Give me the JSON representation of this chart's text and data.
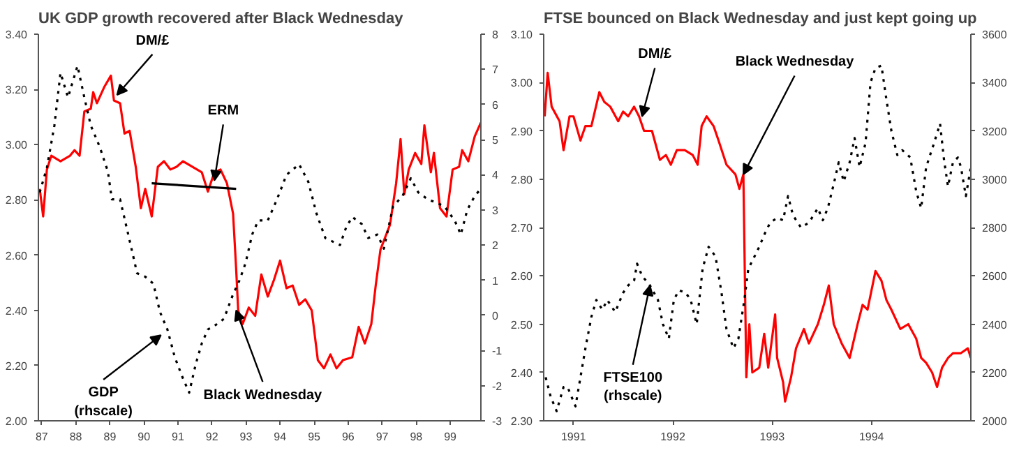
{
  "chart_data": [
    {
      "type": "line",
      "title": "UK GDP growth recovered after Black Wednesday",
      "xlim": [
        86.9,
        99.9
      ],
      "xticks": [
        87,
        88,
        89,
        90,
        91,
        92,
        93,
        94,
        95,
        96,
        97,
        98,
        99
      ],
      "ylim": [
        2.0,
        3.4
      ],
      "yticks": [
        {
          "value": 2.0,
          "label": "2.00"
        },
        {
          "value": 2.2,
          "label": "2.20"
        },
        {
          "value": 2.4,
          "label": "2.40"
        },
        {
          "value": 2.6,
          "label": "2.60"
        },
        {
          "value": 2.8,
          "label": "2.80"
        },
        {
          "value": 3.0,
          "label": "3.00"
        },
        {
          "value": 3.2,
          "label": "3.20"
        },
        {
          "value": 3.4,
          "label": "3.40"
        }
      ],
      "y2lim": [
        -3,
        8
      ],
      "y2ticks": [
        -3,
        -2,
        -1,
        0,
        1,
        2,
        3,
        4,
        5,
        6,
        7,
        8
      ],
      "grid": false,
      "series": [
        {
          "color": "#ff0000",
          "line_style": "solid",
          "x": [
            86.94,
            87.04,
            87.15,
            87.28,
            87.55,
            87.83,
            87.96,
            88.11,
            88.25,
            88.44,
            88.51,
            88.62,
            88.84,
            89.03,
            89.12,
            89.3,
            89.43,
            89.58,
            89.76,
            89.91,
            90.04,
            90.23,
            90.41,
            90.59,
            90.78,
            90.96,
            91.15,
            91.42,
            91.7,
            91.88,
            92.07,
            92.25,
            92.44,
            92.62,
            92.71,
            92.77,
            92.9,
            93.08,
            93.27,
            93.45,
            93.64,
            93.82,
            94.0,
            94.19,
            94.37,
            94.56,
            94.74,
            94.93,
            95.11,
            95.29,
            95.48,
            95.66,
            95.85,
            96.12,
            96.31,
            96.49,
            96.68,
            96.81,
            96.95,
            97.23,
            97.41,
            97.54,
            97.65,
            97.78,
            97.97,
            98.15,
            98.24,
            98.43,
            98.52,
            98.7,
            98.89,
            99.07,
            99.26,
            99.35,
            99.53,
            99.72,
            99.9
          ],
          "values": [
            2.84,
            2.74,
            2.91,
            2.96,
            2.94,
            2.96,
            2.98,
            2.96,
            3.12,
            3.13,
            3.19,
            3.15,
            3.21,
            3.25,
            3.16,
            3.15,
            3.04,
            3.05,
            2.92,
            2.77,
            2.84,
            2.74,
            2.92,
            2.94,
            2.91,
            2.92,
            2.94,
            2.92,
            2.9,
            2.83,
            2.9,
            2.91,
            2.86,
            2.75,
            2.55,
            2.4,
            2.35,
            2.41,
            2.38,
            2.53,
            2.45,
            2.51,
            2.58,
            2.48,
            2.49,
            2.42,
            2.44,
            2.4,
            2.22,
            2.19,
            2.24,
            2.19,
            2.22,
            2.23,
            2.34,
            2.28,
            2.35,
            2.49,
            2.62,
            2.71,
            2.86,
            3.02,
            2.82,
            2.91,
            2.97,
            2.93,
            3.07,
            2.9,
            2.97,
            2.77,
            2.74,
            2.91,
            2.92,
            2.98,
            2.94,
            3.03,
            3.08
          ]
        },
        {
          "color": "#000000",
          "line_style": "dotted",
          "axis": "y2",
          "x": [
            86.94,
            87.15,
            87.37,
            87.55,
            87.77,
            88.05,
            88.25,
            88.44,
            88.7,
            88.94,
            89.06,
            89.3,
            89.54,
            89.8,
            90.04,
            90.28,
            90.47,
            90.69,
            90.91,
            91.15,
            91.33,
            91.52,
            91.7,
            91.88,
            92.07,
            92.35,
            92.62,
            92.81,
            92.99,
            93.18,
            93.36,
            93.64,
            93.91,
            94.19,
            94.56,
            94.83,
            95.07,
            95.33,
            95.76,
            95.94,
            96.12,
            96.4,
            96.59,
            96.86,
            97.05,
            97.32,
            97.6,
            97.84,
            98.06,
            98.34,
            98.61,
            98.83,
            99.13,
            99.31,
            99.5,
            99.72,
            99.9
          ],
          "values": [
            3.5,
            4.2,
            5.4,
            6.9,
            6.2,
            7.1,
            6.2,
            5.4,
            4.8,
            4.1,
            3.3,
            3.3,
            2.3,
            1.2,
            1.1,
            0.9,
            0.1,
            -0.4,
            -1.2,
            -1.8,
            -2.2,
            -1.4,
            -0.8,
            -0.4,
            -0.3,
            -0.1,
            0.6,
            1.0,
            1.5,
            2.3,
            2.7,
            2.7,
            3.3,
            4.0,
            4.3,
            3.8,
            2.9,
            2.2,
            2.0,
            2.5,
            2.8,
            2.6,
            2.2,
            2.3,
            1.9,
            3.1,
            3.4,
            3.9,
            3.5,
            3.3,
            3.2,
            3.1,
            2.7,
            2.3,
            3.0,
            3.4,
            3.6
          ]
        },
        {
          "color": "#000000",
          "line_style": "solid",
          "x": [
            90.23,
            92.71
          ],
          "values": [
            2.86,
            2.84
          ]
        }
      ],
      "annotations": [
        {
          "text": "DM/£",
          "x": 89.21,
          "y": 3.18
        },
        {
          "text": "ERM",
          "x": 92.07,
          "y": 2.87
        },
        {
          "text": "GDP\n(rhscale)",
          "x": 90.5,
          "y": 2.31
        },
        {
          "text": "Black Wednesday",
          "x": 92.71,
          "y": 2.4
        }
      ]
    },
    {
      "type": "line",
      "title": "FTSE bounced on Black Wednesday and just kept going up",
      "xlim": [
        1990.7,
        1995.0
      ],
      "xticks": [
        1991,
        1992,
        1993,
        1994
      ],
      "ylim": [
        2.3,
        3.1
      ],
      "yticks": [
        {
          "value": 2.3,
          "label": "2.30"
        },
        {
          "value": 2.4,
          "label": "2.40"
        },
        {
          "value": 2.5,
          "label": "2.50"
        },
        {
          "value": 2.6,
          "label": "2.60"
        },
        {
          "value": 2.7,
          "label": "2.70"
        },
        {
          "value": 2.8,
          "label": "2.80"
        },
        {
          "value": 2.9,
          "label": "2.90"
        },
        {
          "value": 3.0,
          "label": "3.00"
        },
        {
          "value": 3.1,
          "label": "3.10"
        }
      ],
      "y2lim": [
        2000,
        3600
      ],
      "y2ticks": [
        2000,
        2200,
        2400,
        2600,
        2800,
        3000,
        3200,
        3400,
        3600
      ],
      "grid": false,
      "series": [
        {
          "color": "#ff0000",
          "line_style": "solid",
          "x": [
            1990.71,
            1990.74,
            1990.78,
            1990.86,
            1990.9,
            1990.96,
            1991.0,
            1991.07,
            1991.12,
            1991.18,
            1991.26,
            1991.31,
            1991.37,
            1991.45,
            1991.5,
            1991.55,
            1991.61,
            1991.66,
            1991.71,
            1991.79,
            1991.87,
            1991.93,
            1991.98,
            1992.04,
            1992.12,
            1992.2,
            1992.25,
            1992.29,
            1992.34,
            1992.41,
            1992.46,
            1992.54,
            1992.63,
            1992.67,
            1992.71,
            1992.74,
            1992.77,
            1992.8,
            1992.87,
            1992.92,
            1992.96,
            1993.03,
            1993.05,
            1993.11,
            1993.13,
            1993.19,
            1993.24,
            1993.32,
            1993.37,
            1993.46,
            1993.52,
            1993.57,
            1993.62,
            1993.7,
            1993.78,
            1993.86,
            1993.91,
            1993.96,
            1994.04,
            1994.1,
            1994.15,
            1994.2,
            1994.29,
            1994.37,
            1994.45,
            1994.5,
            1994.55,
            1994.61,
            1994.66,
            1994.71,
            1994.77,
            1994.82,
            1994.9,
            1994.97,
            1995.0
          ],
          "values": [
            2.93,
            3.02,
            2.95,
            2.92,
            2.86,
            2.93,
            2.93,
            2.88,
            2.91,
            2.91,
            2.98,
            2.96,
            2.95,
            2.92,
            2.94,
            2.93,
            2.95,
            2.93,
            2.9,
            2.9,
            2.84,
            2.85,
            2.83,
            2.86,
            2.86,
            2.85,
            2.83,
            2.91,
            2.93,
            2.91,
            2.88,
            2.83,
            2.81,
            2.78,
            2.81,
            2.39,
            2.5,
            2.4,
            2.41,
            2.48,
            2.41,
            2.52,
            2.43,
            2.38,
            2.34,
            2.39,
            2.45,
            2.49,
            2.46,
            2.5,
            2.54,
            2.58,
            2.5,
            2.46,
            2.43,
            2.5,
            2.54,
            2.53,
            2.61,
            2.59,
            2.55,
            2.53,
            2.49,
            2.5,
            2.47,
            2.43,
            2.42,
            2.4,
            2.37,
            2.41,
            2.43,
            2.44,
            2.44,
            2.45,
            2.43
          ]
        },
        {
          "color": "#000000",
          "line_style": "dotted",
          "axis": "y2",
          "x": [
            1990.72,
            1990.77,
            1990.83,
            1990.9,
            1990.94,
            1991.02,
            1991.07,
            1991.12,
            1991.18,
            1991.23,
            1991.29,
            1991.34,
            1991.42,
            1991.5,
            1991.55,
            1991.61,
            1991.64,
            1991.69,
            1991.77,
            1991.85,
            1991.9,
            1991.96,
            1992.01,
            1992.06,
            1992.13,
            1992.18,
            1992.24,
            1992.3,
            1992.36,
            1992.43,
            1992.49,
            1992.54,
            1992.61,
            1992.66,
            1992.72,
            1992.76,
            1992.81,
            1992.87,
            1992.92,
            1992.98,
            1993.05,
            1993.11,
            1993.16,
            1993.21,
            1993.29,
            1993.37,
            1993.46,
            1993.51,
            1993.56,
            1993.62,
            1993.67,
            1993.72,
            1993.78,
            1993.83,
            1993.88,
            1993.94,
            1993.99,
            1994.04,
            1994.1,
            1994.15,
            1994.2,
            1994.26,
            1994.31,
            1994.39,
            1994.45,
            1994.5,
            1994.55,
            1994.63,
            1994.69,
            1994.73,
            1994.77,
            1994.82,
            1994.87,
            1994.9,
            1994.95,
            1995.0
          ],
          "values": [
            2180,
            2100,
            2040,
            2140,
            2140,
            2060,
            2180,
            2300,
            2430,
            2500,
            2460,
            2500,
            2450,
            2530,
            2560,
            2580,
            2650,
            2600,
            2560,
            2500,
            2400,
            2340,
            2500,
            2540,
            2530,
            2500,
            2400,
            2630,
            2720,
            2680,
            2530,
            2380,
            2300,
            2340,
            2500,
            2630,
            2670,
            2720,
            2770,
            2820,
            2840,
            2830,
            2930,
            2850,
            2800,
            2820,
            2880,
            2830,
            2880,
            2980,
            3070,
            2990,
            3070,
            3170,
            3050,
            3150,
            3400,
            3460,
            3470,
            3330,
            3200,
            3100,
            3120,
            3090,
            2950,
            2880,
            3050,
            3150,
            3230,
            3080,
            2970,
            3070,
            3090,
            3050,
            2930,
            3050
          ]
        }
      ],
      "annotations": [
        {
          "text": "DM/£",
          "x": 1991.69,
          "y": 2.93
        },
        {
          "text": "Black Wednesday",
          "x": 1992.71,
          "y": 2.81
        },
        {
          "text": "FTSE100\n(rhscale)",
          "x": 1991.77,
          "y": 2.58
        }
      ]
    }
  ]
}
